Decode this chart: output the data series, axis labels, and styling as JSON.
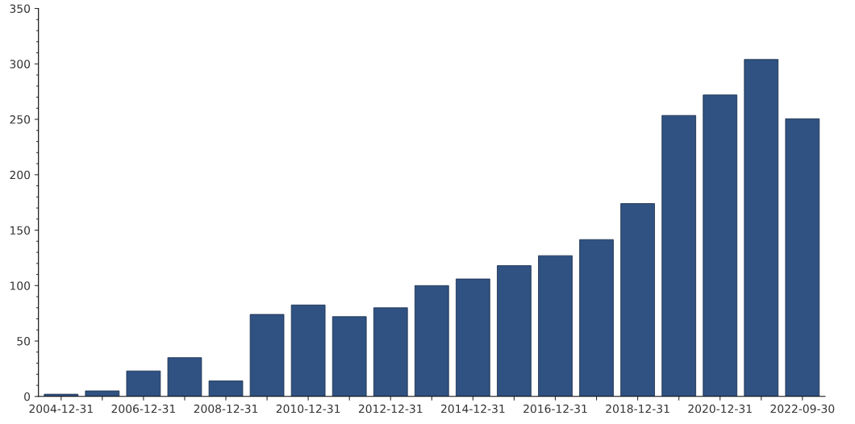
{
  "chart_data": {
    "type": "bar",
    "categories": [
      "2004-12-31",
      null,
      "2006-12-31",
      null,
      "2008-12-31",
      null,
      "2010-12-31",
      null,
      "2012-12-31",
      null,
      "2014-12-31",
      null,
      "2016-12-31",
      null,
      "2018-12-31",
      null,
      "2020-12-31",
      null,
      "2022-09-30"
    ],
    "values": [
      2,
      5,
      23,
      35,
      14,
      74,
      82.5,
      72,
      80,
      100,
      106,
      118,
      127,
      141.5,
      174,
      253.5,
      272,
      304,
      250.5
    ],
    "color": "#2f5282",
    "ylim": [
      0,
      350
    ],
    "yticks": [
      0,
      50,
      100,
      150,
      200,
      250,
      300,
      350
    ],
    "grid": false,
    "legend": false
  }
}
